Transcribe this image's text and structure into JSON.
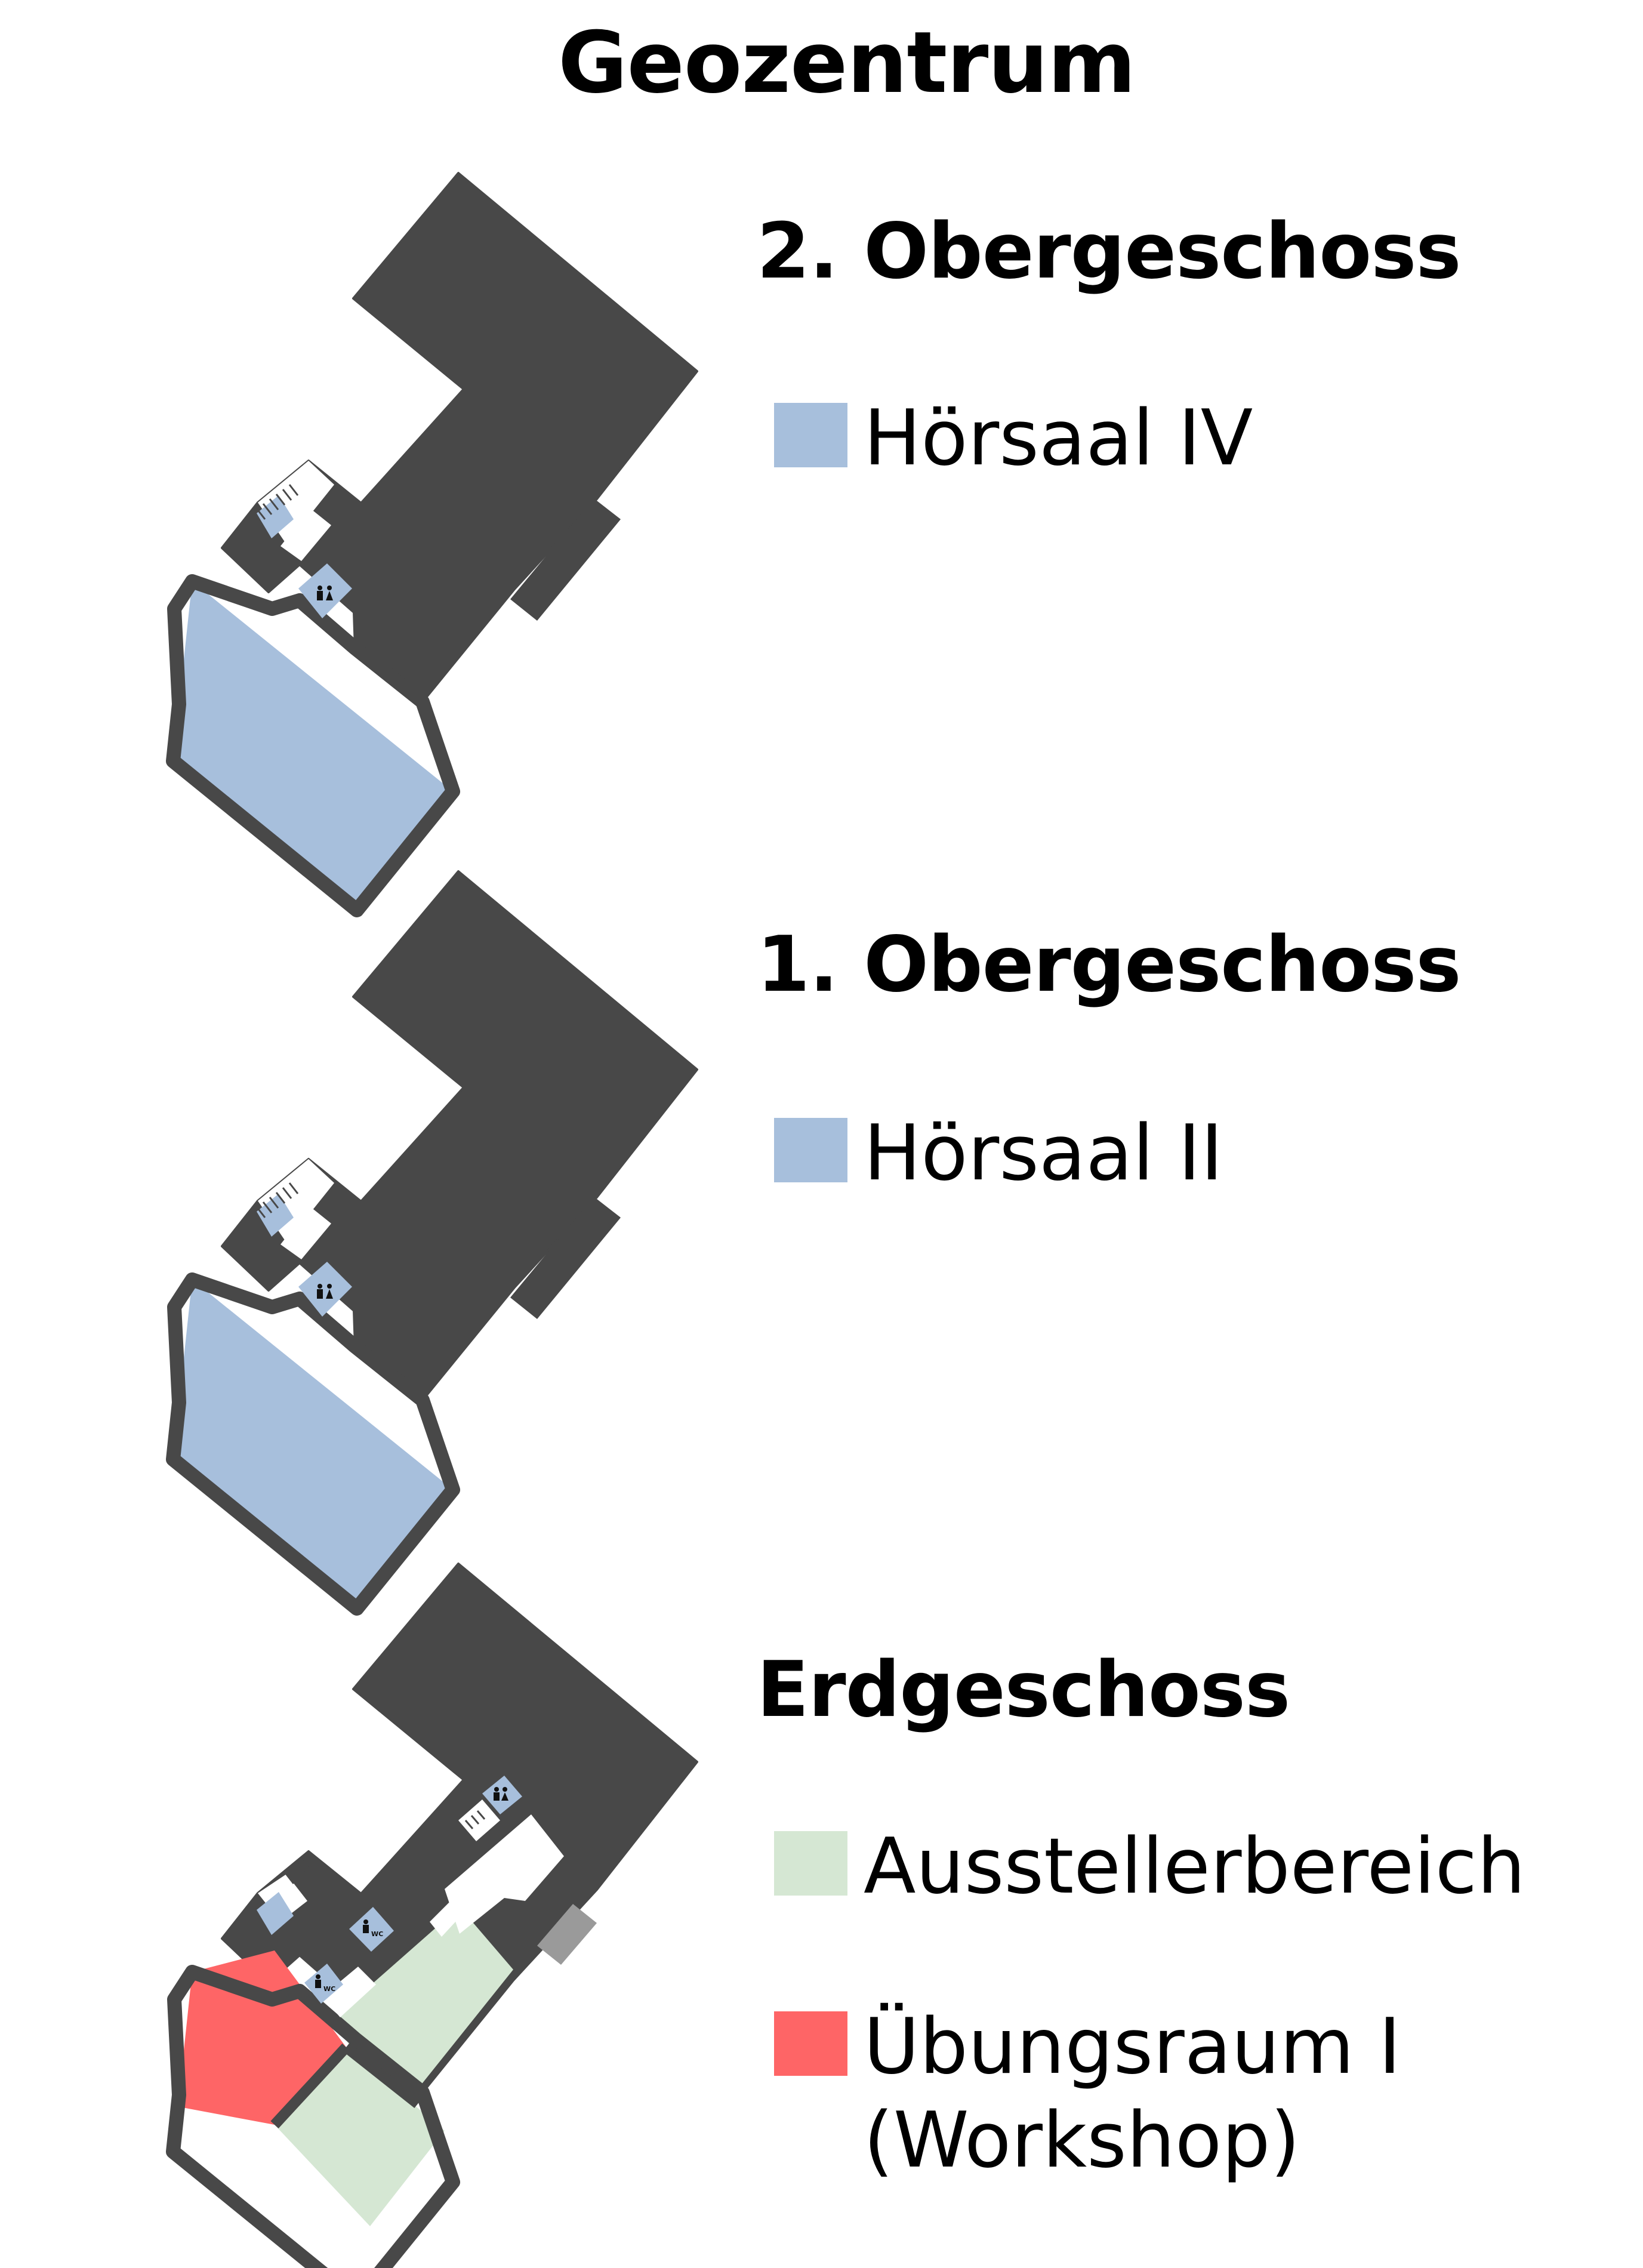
{
  "title": "Geozentrum",
  "floors": [
    {
      "name": "2. Obergeschoss",
      "legend": [
        {
          "label": "Hörsaal IV",
          "color": "#a7bfdc"
        }
      ]
    },
    {
      "name": "1. Obergeschoss",
      "legend": [
        {
          "label": "Hörsaal II",
          "color": "#a7bfdc"
        }
      ]
    },
    {
      "name": "Erdgeschoss",
      "legend": [
        {
          "label": "Ausstellerbereich",
          "color": "#d5e7d3"
        },
        {
          "label": "Übungsraum I",
          "label_line2": "(Workshop)",
          "color": "#fe6566"
        }
      ]
    }
  ],
  "colors": {
    "building": "#484848",
    "lecture_hall": "#a7bfdc",
    "exhibitor_area": "#d5e7d3",
    "workshop": "#fe6566",
    "corridor": "#ffffff"
  },
  "icons": [
    "restroom-icon",
    "wc-icon",
    "stairs-icon"
  ],
  "wc_text": "WC"
}
